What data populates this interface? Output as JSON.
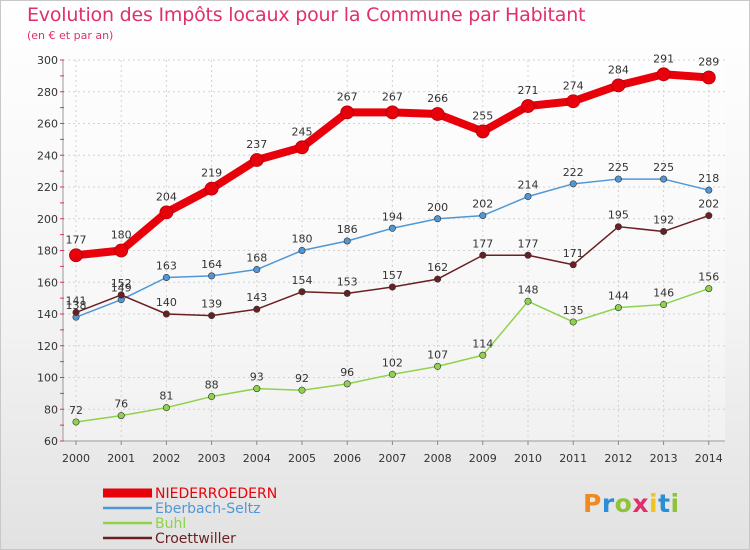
{
  "header": {
    "title": "Evolution des Impôts locaux pour la Commune par Habitant",
    "subtitle": "(en € et par an)"
  },
  "logo": {
    "text": "Proxiti",
    "colors": [
      "#f08a1e",
      "#2a8fd6",
      "#8fc43a",
      "#e0306a",
      "#f0c41e",
      "#2a8fd6",
      "#8fc43a"
    ]
  },
  "chart_data": {
    "type": "line",
    "title": "Evolution des Impôts locaux pour la Commune par Habitant",
    "subtitle": "(en € et par an)",
    "xlabel": "",
    "ylabel": "",
    "x": [
      "2000",
      "2001",
      "2002",
      "2003",
      "2004",
      "2005",
      "2006",
      "2007",
      "2008",
      "2009",
      "2010",
      "2011",
      "2012",
      "2013",
      "2014"
    ],
    "ylim": [
      60,
      300
    ],
    "yticks": [
      60,
      80,
      100,
      120,
      140,
      160,
      180,
      200,
      220,
      240,
      260,
      280,
      300
    ],
    "grid": true,
    "legend_position": "bottom-left",
    "series": [
      {
        "name": "NIEDERROEDERN",
        "color": "#e8000b",
        "values": [
          177,
          180,
          204,
          219,
          237,
          245,
          267,
          267,
          266,
          255,
          271,
          274,
          284,
          291,
          289
        ]
      },
      {
        "name": "Eberbach-Seltz",
        "color": "#4f97d6",
        "values": [
          138,
          149,
          163,
          164,
          168,
          180,
          186,
          194,
          200,
          202,
          214,
          222,
          225,
          225,
          218
        ]
      },
      {
        "name": "Buhl",
        "color": "#8fd24c",
        "values": [
          72,
          76,
          81,
          88,
          93,
          92,
          96,
          102,
          107,
          114,
          148,
          135,
          144,
          146,
          156
        ]
      },
      {
        "name": "Croettwiller",
        "color": "#6b1f22",
        "values": [
          141,
          152,
          140,
          139,
          143,
          154,
          153,
          157,
          162,
          177,
          177,
          171,
          195,
          192,
          202
        ]
      }
    ]
  }
}
